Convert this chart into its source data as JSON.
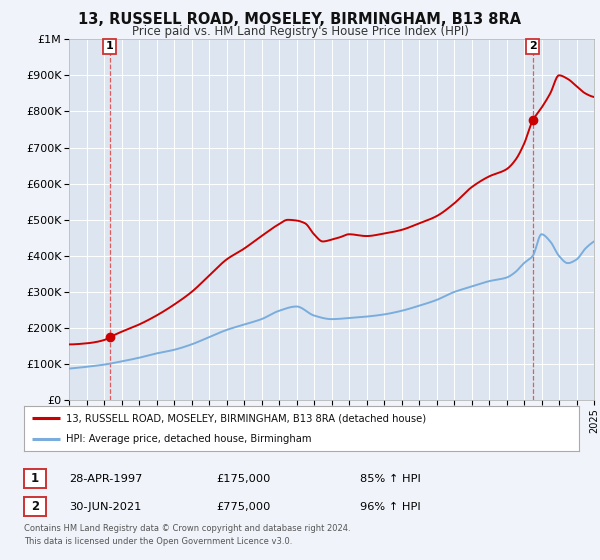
{
  "title": "13, RUSSELL ROAD, MOSELEY, BIRMINGHAM, B13 8RA",
  "subtitle": "Price paid vs. HM Land Registry's House Price Index (HPI)",
  "background_color": "#f0f4fa",
  "plot_bg_color": "#dde6f0",
  "grid_color": "#ffffff",
  "sale1_x": 1997.32,
  "sale1_y": 175000,
  "sale2_x": 2021.5,
  "sale2_y": 775000,
  "legend_label_red": "13, RUSSELL ROAD, MOSELEY, BIRMINGHAM, B13 8RA (detached house)",
  "legend_label_blue": "HPI: Average price, detached house, Birmingham",
  "ann1_date": "28-APR-1997",
  "ann1_price": "£175,000",
  "ann1_hpi": "85% ↑ HPI",
  "ann2_date": "30-JUN-2021",
  "ann2_price": "£775,000",
  "ann2_hpi": "96% ↑ HPI",
  "footer1": "Contains HM Land Registry data © Crown copyright and database right 2024.",
  "footer2": "This data is licensed under the Open Government Licence v3.0.",
  "xlim": [
    1995,
    2025
  ],
  "ylim": [
    0,
    1000000
  ],
  "yticks": [
    0,
    100000,
    200000,
    300000,
    400000,
    500000,
    600000,
    700000,
    800000,
    900000,
    1000000
  ],
  "ytick_labels": [
    "£0",
    "£100K",
    "£200K",
    "£300K",
    "£400K",
    "£500K",
    "£600K",
    "£700K",
    "£800K",
    "£900K",
    "£1M"
  ],
  "red_color": "#cc0000",
  "blue_color": "#7aaddd",
  "dashed_color": "#dd4444"
}
